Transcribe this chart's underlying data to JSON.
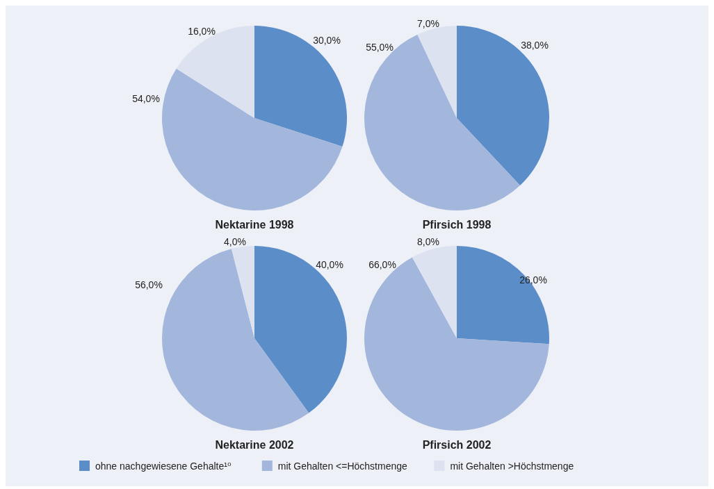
{
  "chart_data": [
    {
      "type": "pie",
      "title": "Nektarine 1998",
      "categories": [
        "ohne nachgewiesene Gehalte¹⁰",
        "mit Gehalten <=Höchstmenge",
        "mit Gehalten >Höchstmenge"
      ],
      "values": [
        30,
        54,
        16
      ],
      "value_labels": [
        "30,0%",
        "54,0%",
        "16,0%"
      ],
      "colors": [
        "#5b8dc8",
        "#a3b6dc",
        "#dde2f1"
      ],
      "legend": "bottom"
    },
    {
      "type": "pie",
      "title": "Pfirsich 1998",
      "categories": [
        null,
        null,
        null
      ],
      "values": [
        38,
        55,
        7
      ],
      "value_labels": [
        "38,0%",
        "55,0%",
        "7,0%"
      ],
      "colors": [
        "#5b8dc8",
        "#a3b6dc",
        "#dde2f1"
      ],
      "legend": false
    },
    {
      "type": "pie",
      "title": "Nektarine 2002",
      "categories": [
        null,
        null,
        null
      ],
      "values": [
        40,
        56,
        4
      ],
      "value_labels": [
        "40,0%",
        "56,0%",
        "4,0%"
      ],
      "colors": [
        "#5b8dc8",
        "#a3b6dc",
        "#dde2f1"
      ],
      "legend": false
    },
    {
      "type": "pie",
      "title": "Pfirsich 2002",
      "categories": [
        null,
        null,
        null
      ],
      "values": [
        26,
        66,
        8
      ],
      "value_labels": [
        "26,0%",
        "66,0%",
        "8,0%"
      ],
      "colors": [
        "#5b8dc8",
        "#a3b6dc",
        "#dde2f1"
      ],
      "legend": false
    }
  ]
}
